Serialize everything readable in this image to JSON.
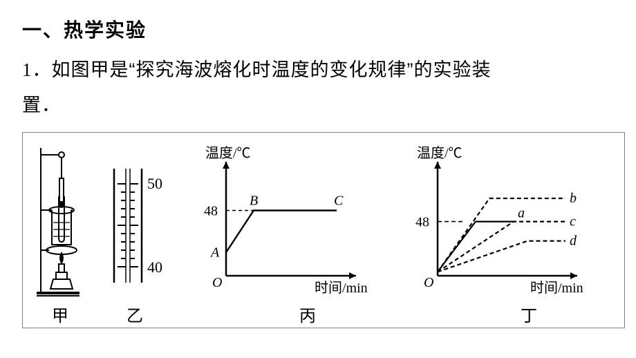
{
  "section_title": "一、热学实验",
  "question": {
    "number": "1．",
    "text_line1": "如图甲是“探究海波熔化时温度的变化规律”的实验装",
    "text_line2": "置．"
  },
  "figure": {
    "border_color": "#808080",
    "captions": {
      "jia": "甲",
      "yi": "乙",
      "bing": "丙",
      "ding": "丁"
    },
    "thermometer": {
      "top_label": "50",
      "bottom_label": "40",
      "major_ticks": [
        40,
        50
      ],
      "minor_step": 1,
      "line_color": "#000000"
    },
    "chart_bing": {
      "type": "line",
      "y_axis_label": "温度/℃",
      "x_axis_label": "时间/min",
      "origin_label": "O",
      "y_tick_label": "48",
      "y_tick_value": 48,
      "ylim": [
        20,
        60
      ],
      "points": {
        "A": {
          "x": 0,
          "y": 30
        },
        "B": {
          "x": 40,
          "y": 48
        },
        "C": {
          "x": 160,
          "y": 48
        }
      },
      "point_labels": {
        "A": "A",
        "B": "B",
        "C": "C"
      },
      "dashed_to_y": 48,
      "stroke_color": "#000000",
      "stroke_width": 2.4,
      "dash_pattern": "5,4",
      "label_fontsize": 20,
      "axis_label_fontsize": 20
    },
    "chart_ding": {
      "type": "line",
      "y_axis_label": "温度/℃",
      "x_axis_label": "时间/min",
      "origin_label": "O",
      "y_tick_label": "48",
      "y_tick_value": 48,
      "ylim": [
        20,
        70
      ],
      "curve_labels": [
        "a",
        "b",
        "c",
        "d"
      ],
      "curves": {
        "a": {
          "rise_end_x": 55,
          "rise_end_y": 48,
          "plateau_end_x": 110,
          "solid": true
        },
        "b": {
          "rise_end_x": 75,
          "rise_end_y": 60,
          "plateau_end_x": 185,
          "solid": false
        },
        "c": {
          "rise_end_x": 110,
          "rise_end_y": 48,
          "plateau_end_x": 185,
          "solid": false
        },
        "d": {
          "rise_end_x": 130,
          "rise_end_y": 38,
          "plateau_end_x": 185,
          "solid": false
        }
      },
      "origin_y": 22,
      "stroke_color": "#000000",
      "stroke_width": 2.2,
      "dash_pattern": "6,4",
      "label_fontsize": 20,
      "axis_label_fontsize": 20
    }
  }
}
